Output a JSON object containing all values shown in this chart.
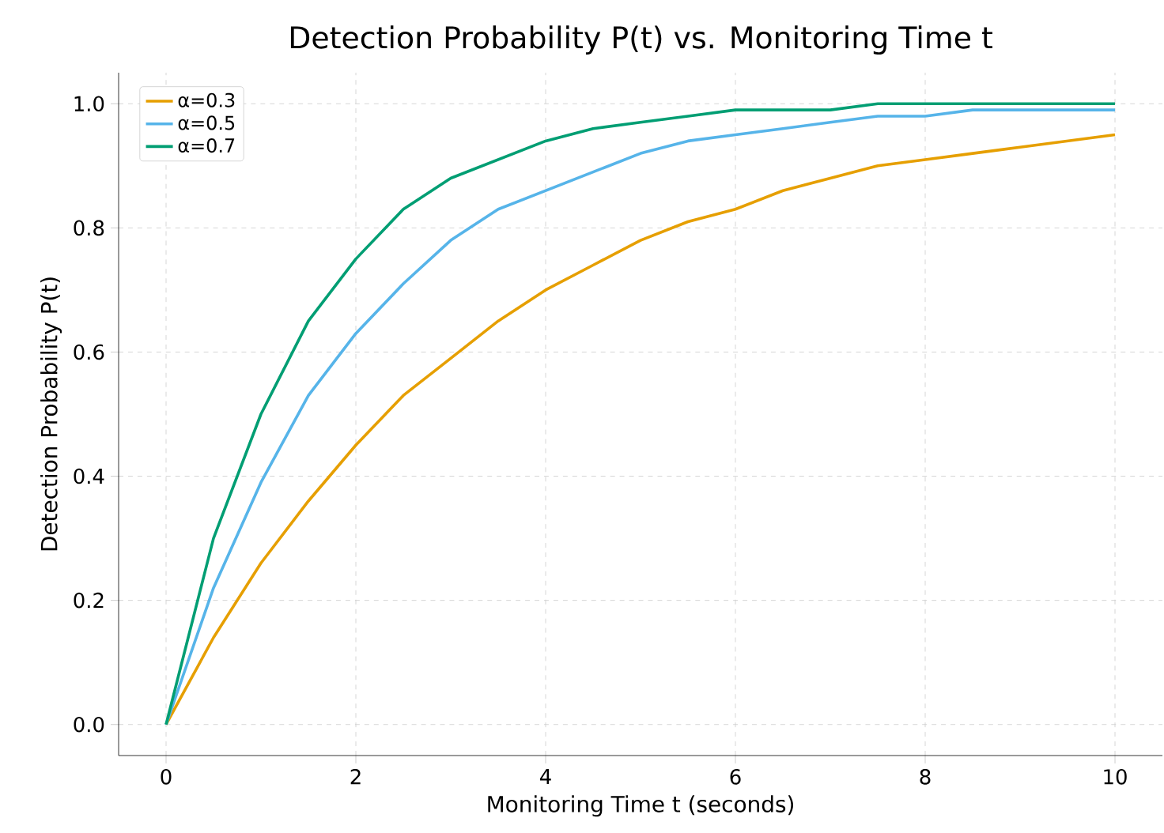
{
  "chart_data": {
    "type": "line",
    "title": "Detection Probability P(t) vs. Monitoring Time t",
    "xlabel": "Monitoring Time t (seconds)",
    "ylabel": "Detection Probability P(t)",
    "x": [
      0,
      0.5,
      1,
      1.5,
      2,
      2.5,
      3,
      3.5,
      4,
      4.5,
      5,
      5.5,
      6,
      6.5,
      7,
      7.5,
      8,
      8.5,
      9,
      9.5,
      10
    ],
    "series": [
      {
        "name": "α=0.3",
        "color": "#e69f00",
        "values": [
          0,
          0.14,
          0.26,
          0.36,
          0.45,
          0.53,
          0.59,
          0.65,
          0.7,
          0.74,
          0.78,
          0.81,
          0.83,
          0.86,
          0.88,
          0.9,
          0.91,
          0.92,
          0.93,
          0.94,
          0.95
        ]
      },
      {
        "name": "α=0.5",
        "color": "#56b4e9",
        "values": [
          0,
          0.22,
          0.39,
          0.53,
          0.63,
          0.71,
          0.78,
          0.83,
          0.86,
          0.89,
          0.92,
          0.94,
          0.95,
          0.96,
          0.97,
          0.98,
          0.98,
          0.99,
          0.99,
          0.99,
          0.99
        ]
      },
      {
        "name": "α=0.7",
        "color": "#009e73",
        "values": [
          0,
          0.3,
          0.5,
          0.65,
          0.75,
          0.83,
          0.88,
          0.91,
          0.94,
          0.96,
          0.97,
          0.98,
          0.99,
          0.99,
          0.99,
          1.0,
          1.0,
          1.0,
          1.0,
          1.0,
          1.0
        ]
      }
    ],
    "xlim": [
      -0.5,
      10.5
    ],
    "ylim": [
      -0.05,
      1.05
    ],
    "xticks": [
      0,
      2,
      4,
      6,
      8,
      10
    ],
    "yticks": [
      {
        "value": 0,
        "label": "0.0"
      },
      {
        "value": 0.2,
        "label": "0.2"
      },
      {
        "value": 0.4,
        "label": "0.4"
      },
      {
        "value": 0.6,
        "label": "0.6"
      },
      {
        "value": 0.8,
        "label": "0.8"
      },
      {
        "value": 1.0,
        "label": "1.0"
      }
    ],
    "grid": true,
    "legend": "top left"
  }
}
